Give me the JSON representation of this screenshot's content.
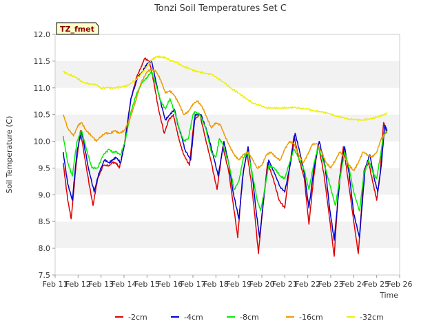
{
  "chart_data": {
    "type": "line",
    "title": "Tonzi Soil Temperatures Set C",
    "xlabel": "Time",
    "ylabel": "Soil Temperature (C)",
    "badge": "TZ_fmet",
    "xlim": [
      11,
      26
    ],
    "ylim": [
      7.5,
      12.0
    ],
    "grid": "horizontal bands",
    "legend_position": "bottom",
    "x_ticks": [
      {
        "v": 11,
        "label": "Feb 11"
      },
      {
        "v": 12,
        "label": "Feb 12"
      },
      {
        "v": 13,
        "label": "Feb 13"
      },
      {
        "v": 14,
        "label": "Feb 14"
      },
      {
        "v": 15,
        "label": "Feb 15"
      },
      {
        "v": 16,
        "label": "Feb 16"
      },
      {
        "v": 17,
        "label": "Feb 17"
      },
      {
        "v": 18,
        "label": "Feb 18"
      },
      {
        "v": 19,
        "label": "Feb 19"
      },
      {
        "v": 20,
        "label": "Feb 20"
      },
      {
        "v": 21,
        "label": "Feb 21"
      },
      {
        "v": 22,
        "label": "Feb 22"
      },
      {
        "v": 23,
        "label": "Feb 23"
      },
      {
        "v": 24,
        "label": "Feb 24"
      },
      {
        "v": 25,
        "label": "Feb 25"
      },
      {
        "v": 26,
        "label": "Feb 26"
      }
    ],
    "y_ticks": [
      {
        "v": 7.5,
        "label": "7.5"
      },
      {
        "v": 8.0,
        "label": "8.0"
      },
      {
        "v": 8.5,
        "label": "8.5"
      },
      {
        "v": 9.0,
        "label": "9.0"
      },
      {
        "v": 9.5,
        "label": "9.5"
      },
      {
        "v": 10.0,
        "label": "10.0"
      },
      {
        "v": 10.5,
        "label": "10.5"
      },
      {
        "v": 11.0,
        "label": "11.0"
      },
      {
        "v": 11.5,
        "label": "11.5"
      },
      {
        "v": 12.0,
        "label": "12.0"
      }
    ],
    "series": [
      {
        "name": "-2cm",
        "color": "#dd0000",
        "x": [
          11.35,
          11.55,
          11.7,
          11.9,
          12.1,
          12.4,
          12.65,
          12.85,
          13.1,
          13.35,
          13.5,
          13.65,
          13.8,
          14.0,
          14.3,
          14.55,
          14.75,
          14.9,
          15.1,
          15.3,
          15.5,
          15.75,
          15.95,
          16.15,
          16.3,
          16.45,
          16.6,
          16.85,
          17.05,
          17.3,
          17.55,
          17.8,
          18.05,
          18.3,
          18.55,
          18.75,
          18.95,
          19.15,
          19.35,
          19.55,
          19.7,
          19.85,
          20.05,
          20.25,
          20.5,
          20.75,
          21.0,
          21.2,
          21.4,
          21.6,
          21.85,
          22.05,
          22.25,
          22.45,
          22.7,
          22.95,
          23.15,
          23.35,
          23.55,
          23.75,
          24.0,
          24.2,
          24.45,
          24.65,
          24.85,
          25.0,
          25.15,
          25.3,
          25.45
        ],
        "y": [
          9.6,
          8.9,
          8.55,
          9.5,
          10.2,
          9.4,
          8.8,
          9.3,
          9.55,
          9.55,
          9.6,
          9.6,
          9.5,
          9.9,
          10.8,
          11.2,
          11.4,
          11.55,
          11.5,
          11.1,
          10.6,
          10.15,
          10.4,
          10.5,
          10.2,
          9.95,
          9.75,
          9.55,
          10.4,
          10.5,
          10.05,
          9.6,
          9.1,
          9.9,
          9.45,
          8.85,
          8.2,
          9.3,
          9.8,
          9.2,
          8.6,
          7.9,
          8.8,
          9.6,
          9.3,
          8.9,
          8.75,
          9.5,
          10.1,
          9.7,
          9.3,
          8.45,
          9.3,
          9.95,
          9.4,
          8.55,
          7.85,
          9.2,
          9.9,
          9.3,
          8.5,
          7.9,
          9.45,
          9.6,
          9.2,
          8.9,
          9.4,
          10.35,
          10.15
        ]
      },
      {
        "name": "-4cm",
        "color": "#0000cc",
        "x": [
          11.35,
          11.55,
          11.75,
          11.95,
          12.15,
          12.45,
          12.7,
          12.9,
          13.15,
          13.35,
          13.5,
          13.65,
          13.85,
          14.05,
          14.3,
          14.6,
          14.8,
          15.0,
          15.2,
          15.35,
          15.55,
          15.8,
          16.0,
          16.2,
          16.35,
          16.5,
          16.65,
          16.9,
          17.1,
          17.35,
          17.6,
          17.85,
          18.1,
          18.35,
          18.55,
          18.75,
          19.0,
          19.2,
          19.4,
          19.6,
          19.75,
          19.9,
          20.1,
          20.3,
          20.55,
          20.8,
          21.0,
          21.25,
          21.45,
          21.65,
          21.85,
          22.05,
          22.25,
          22.5,
          22.75,
          22.95,
          23.15,
          23.4,
          23.6,
          23.8,
          24.0,
          24.25,
          24.5,
          24.7,
          24.9,
          25.05,
          25.2,
          25.35,
          25.45
        ],
        "y": [
          9.8,
          9.2,
          8.9,
          9.8,
          10.2,
          9.5,
          9.05,
          9.4,
          9.65,
          9.6,
          9.65,
          9.7,
          9.6,
          10.0,
          10.8,
          11.2,
          11.3,
          11.45,
          11.5,
          11.2,
          10.8,
          10.4,
          10.5,
          10.6,
          10.3,
          10.1,
          9.85,
          9.65,
          10.5,
          10.5,
          10.2,
          9.8,
          9.35,
          10.0,
          9.6,
          9.05,
          8.55,
          9.45,
          9.9,
          9.3,
          8.7,
          8.2,
          9.0,
          9.65,
          9.4,
          9.15,
          9.05,
          9.6,
          10.15,
          9.8,
          9.4,
          8.75,
          9.45,
          10.0,
          9.55,
          8.75,
          8.15,
          9.3,
          9.9,
          9.4,
          8.65,
          8.2,
          9.5,
          9.75,
          9.3,
          9.05,
          9.55,
          10.3,
          10.2
        ]
      },
      {
        "name": "-8cm",
        "color": "#00ee00",
        "x": [
          11.35,
          11.55,
          11.75,
          11.95,
          12.15,
          12.4,
          12.6,
          12.85,
          13.1,
          13.35,
          13.5,
          13.65,
          13.85,
          14.05,
          14.3,
          14.55,
          14.8,
          15.0,
          15.2,
          15.4,
          15.6,
          15.8,
          16.0,
          16.2,
          16.4,
          16.6,
          16.8,
          17.0,
          17.1,
          17.3,
          17.55,
          17.8,
          18.0,
          18.15,
          18.3,
          18.55,
          18.8,
          19.0,
          19.2,
          19.4,
          19.6,
          19.8,
          19.95,
          20.1,
          20.3,
          20.55,
          20.8,
          21.0,
          21.2,
          21.4,
          21.6,
          21.85,
          22.05,
          22.25,
          22.45,
          22.7,
          22.95,
          23.2,
          23.4,
          23.6,
          23.8,
          24.0,
          24.25,
          24.45,
          24.65,
          24.85,
          25.0,
          25.15,
          25.3,
          25.45
        ],
        "y": [
          10.1,
          9.6,
          9.35,
          10.0,
          10.2,
          9.8,
          9.5,
          9.5,
          9.75,
          9.85,
          9.8,
          9.8,
          9.75,
          10.0,
          10.55,
          10.9,
          11.1,
          11.2,
          11.3,
          11.05,
          10.75,
          10.6,
          10.8,
          10.55,
          10.25,
          10.0,
          10.05,
          10.5,
          10.55,
          10.5,
          10.25,
          9.8,
          9.7,
          10.05,
          9.95,
          9.6,
          9.1,
          9.25,
          9.7,
          9.8,
          9.35,
          8.9,
          8.7,
          9.05,
          9.55,
          9.5,
          9.35,
          9.3,
          9.6,
          9.85,
          9.7,
          9.45,
          9.1,
          9.55,
          9.9,
          9.6,
          9.2,
          8.8,
          9.3,
          9.8,
          9.5,
          9.05,
          8.7,
          9.4,
          9.65,
          9.4,
          9.3,
          9.7,
          10.1,
          10.2
        ]
      },
      {
        "name": "-16cm",
        "color": "#ee9900",
        "x": [
          11.35,
          11.55,
          11.8,
          12.0,
          12.15,
          12.35,
          12.6,
          12.8,
          13.0,
          13.2,
          13.4,
          13.6,
          13.8,
          14.0,
          14.25,
          14.5,
          14.75,
          15.0,
          15.2,
          15.4,
          15.6,
          15.8,
          16.0,
          16.2,
          16.4,
          16.6,
          16.8,
          17.0,
          17.2,
          17.4,
          17.6,
          17.8,
          18.0,
          18.2,
          18.4,
          18.6,
          18.8,
          19.0,
          19.2,
          19.4,
          19.6,
          19.8,
          20.0,
          20.2,
          20.4,
          20.6,
          20.8,
          21.0,
          21.2,
          21.4,
          21.6,
          21.8,
          22.0,
          22.2,
          22.4,
          22.6,
          22.8,
          23.0,
          23.2,
          23.4,
          23.6,
          23.8,
          24.0,
          24.2,
          24.4,
          24.6,
          24.8,
          25.0,
          25.2,
          25.4
        ],
        "y": [
          10.5,
          10.25,
          10.1,
          10.3,
          10.35,
          10.2,
          10.1,
          10.0,
          10.1,
          10.15,
          10.15,
          10.2,
          10.15,
          10.2,
          10.4,
          10.75,
          11.1,
          11.3,
          11.35,
          11.3,
          11.15,
          10.9,
          10.95,
          10.85,
          10.7,
          10.5,
          10.55,
          10.7,
          10.75,
          10.65,
          10.45,
          10.25,
          10.35,
          10.3,
          10.1,
          9.9,
          9.75,
          9.65,
          9.75,
          9.8,
          9.65,
          9.5,
          9.55,
          9.75,
          9.8,
          9.7,
          9.65,
          9.85,
          10.0,
          9.95,
          9.75,
          9.6,
          9.75,
          9.95,
          9.95,
          9.8,
          9.6,
          9.5,
          9.65,
          9.8,
          9.7,
          9.55,
          9.45,
          9.6,
          9.8,
          9.75,
          9.7,
          9.8,
          10.05,
          10.15
        ]
      },
      {
        "name": "-32cm",
        "color": "#eeee00",
        "x": [
          11.35,
          11.6,
          11.9,
          12.2,
          12.5,
          12.8,
          13.0,
          13.3,
          13.6,
          13.9,
          14.2,
          14.5,
          14.8,
          15.0,
          15.2,
          15.4,
          15.6,
          15.8,
          16.0,
          16.3,
          16.6,
          16.9,
          17.2,
          17.5,
          17.8,
          18.1,
          18.4,
          18.7,
          19.0,
          19.3,
          19.6,
          19.9,
          20.2,
          20.5,
          20.8,
          21.1,
          21.4,
          21.7,
          22.0,
          22.3,
          22.6,
          22.9,
          23.2,
          23.5,
          23.8,
          24.1,
          24.4,
          24.7,
          25.0,
          25.3,
          25.45
        ],
        "y": [
          11.3,
          11.25,
          11.2,
          11.1,
          11.08,
          11.05,
          11.0,
          11.0,
          11.0,
          11.02,
          11.05,
          11.15,
          11.28,
          11.4,
          11.52,
          11.58,
          11.58,
          11.56,
          11.52,
          11.47,
          11.4,
          11.35,
          11.3,
          11.28,
          11.25,
          11.18,
          11.08,
          10.98,
          10.9,
          10.8,
          10.72,
          10.67,
          10.63,
          10.62,
          10.62,
          10.63,
          10.63,
          10.62,
          10.6,
          10.57,
          10.55,
          10.52,
          10.48,
          10.44,
          10.42,
          10.4,
          10.4,
          10.42,
          10.45,
          10.5,
          10.52
        ]
      }
    ]
  }
}
